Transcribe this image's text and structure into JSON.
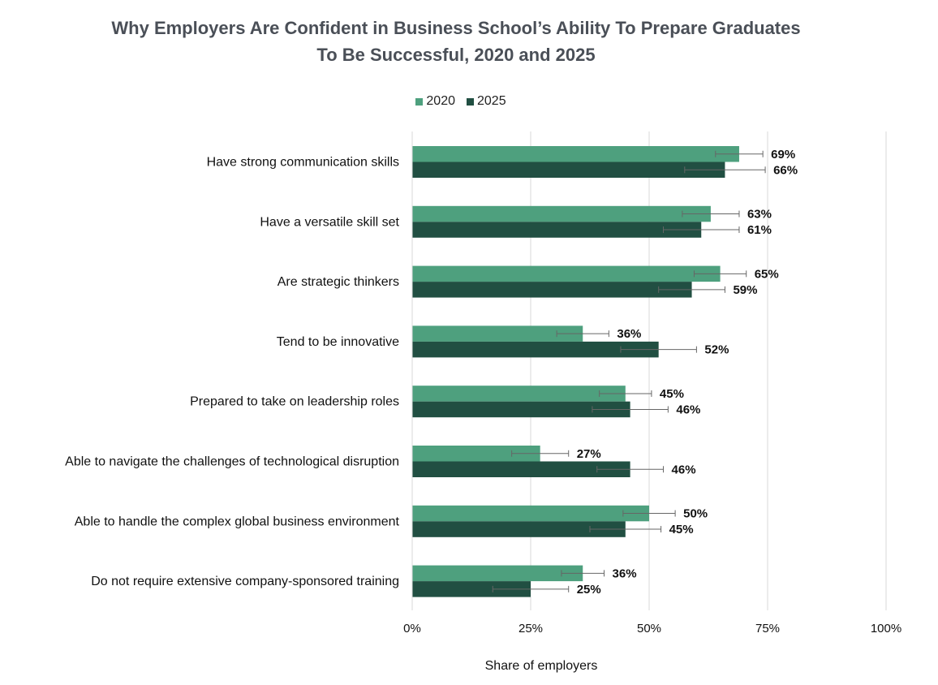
{
  "chart_data": {
    "type": "bar",
    "orientation": "horizontal",
    "title": "Why Employers Are Confident in Business School’s Ability To Prepare Graduates To Be Successful, 2020 and 2025",
    "title_lines": [
      "Why Employers Are Confident in Business School’s Ability To Prepare Graduates",
      "To Be Successful, 2020 and 2025"
    ],
    "xlabel": "Share of employers",
    "ylabel": "",
    "xlim": [
      0,
      100
    ],
    "x_ticks": [
      "0%",
      "25%",
      "50%",
      "75%",
      "100%"
    ],
    "x_tick_values": [
      0,
      25,
      50,
      75,
      100
    ],
    "grid": "vertical",
    "legend_position": "top-center",
    "categories": [
      "Have strong communication skills",
      "Have a versatile skill set",
      "Are strategic thinkers",
      "Tend to be innovative",
      "Prepared to take on leadership roles",
      "Able to navigate the challenges of technological disruption",
      "Able to handle the complex global business environment",
      "Do not require extensive company-sponsored training"
    ],
    "series": [
      {
        "name": "2020",
        "color": "#4ea07e",
        "values": [
          69,
          63,
          65,
          36,
          45,
          27,
          50,
          36
        ],
        "labels": [
          "69%",
          "63%",
          "65%",
          "36%",
          "45%",
          "27%",
          "50%",
          "36%"
        ],
        "error_ranges": [
          [
            64,
            74
          ],
          [
            57,
            69
          ],
          [
            59.5,
            70.5
          ],
          [
            30.5,
            41.5
          ],
          [
            39.5,
            50.5
          ],
          [
            21,
            33
          ],
          [
            44.5,
            55.5
          ],
          [
            31.5,
            40.5
          ]
        ]
      },
      {
        "name": "2025",
        "color": "#214f42",
        "values": [
          66,
          61,
          59,
          52,
          46,
          46,
          45,
          25
        ],
        "labels": [
          "66%",
          "61%",
          "59%",
          "52%",
          "46%",
          "46%",
          "45%",
          "25%"
        ],
        "error_ranges": [
          [
            57.5,
            74.5
          ],
          [
            53,
            69
          ],
          [
            52,
            66
          ],
          [
            44,
            60
          ],
          [
            38,
            54
          ],
          [
            39,
            53
          ],
          [
            37.5,
            52.5
          ],
          [
            17,
            33
          ]
        ]
      }
    ]
  }
}
